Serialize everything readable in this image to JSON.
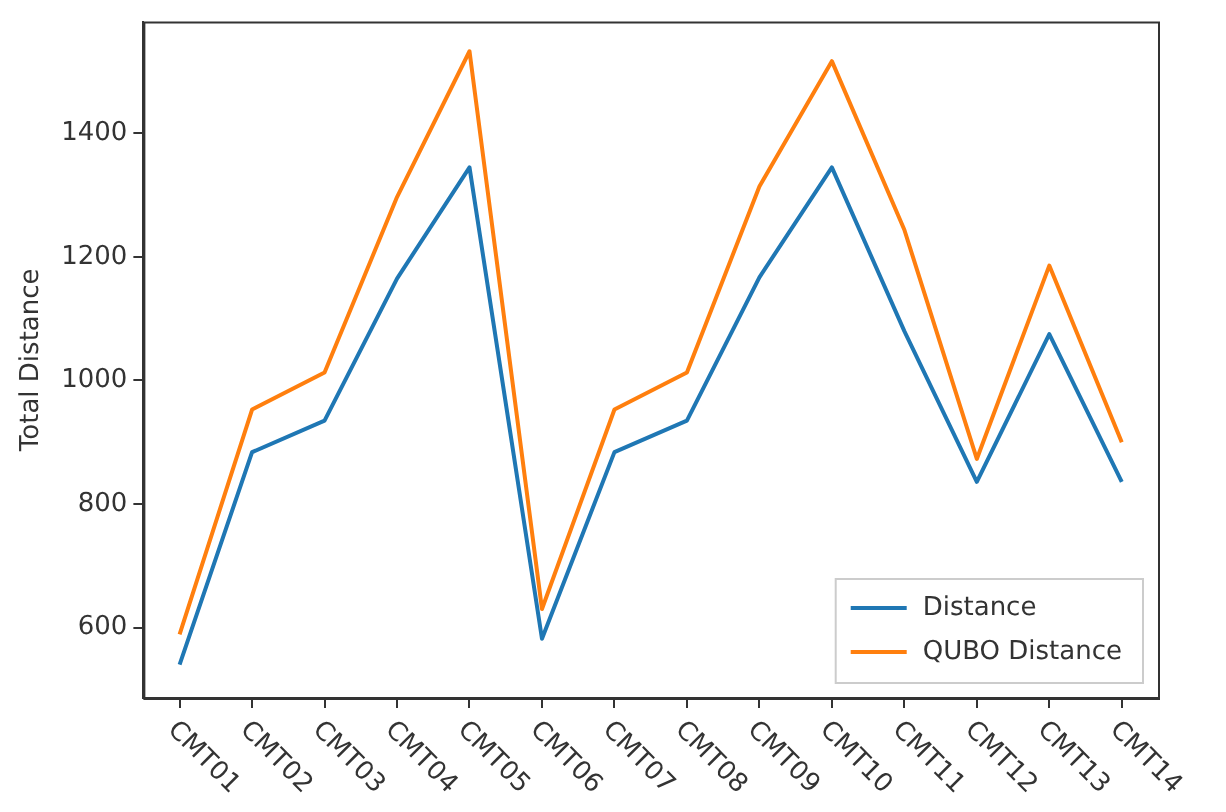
{
  "chart_data": {
    "type": "line",
    "ylabel": "Total Distance",
    "categories": [
      "CMT01",
      "CMT02",
      "CMT03",
      "CMT04",
      "CMT05",
      "CMT06",
      "CMT07",
      "CMT08",
      "CMT09",
      "CMT10",
      "CMT11",
      "CMT12",
      "CMT13",
      "CMT14"
    ],
    "series": [
      {
        "name": "Distance",
        "color": "#1f77b4",
        "values": [
          540,
          884,
          935,
          1165,
          1345,
          582,
          884,
          935,
          1167,
          1345,
          1080,
          836,
          1075,
          836
        ]
      },
      {
        "name": "QUBO Distance",
        "color": "#ff7f0e",
        "values": [
          589,
          953,
          1013,
          1297,
          1533,
          630,
          953,
          1013,
          1314,
          1517,
          1244,
          873,
          1186,
          900
        ]
      }
    ],
    "ylim": [
      486,
      1581
    ],
    "yticks": [
      600,
      800,
      1000,
      1200,
      1400
    ],
    "grid": false,
    "legend": "bottom right",
    "marker": "none",
    "line_style": "solid"
  }
}
